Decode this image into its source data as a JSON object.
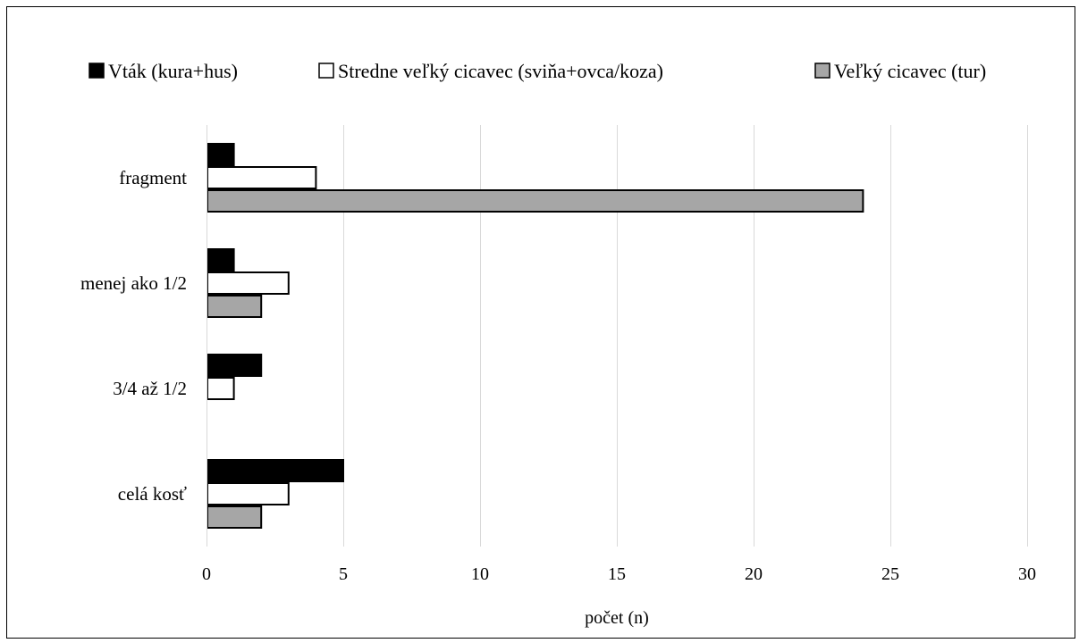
{
  "chart_data": {
    "type": "bar",
    "orientation": "horizontal",
    "categories": [
      "fragment",
      "menej ako 1/2",
      "3/4 až 1/2",
      "celá kosť"
    ],
    "series": [
      {
        "name": "Vták (kura+hus)",
        "values": [
          1,
          1,
          2,
          5
        ],
        "color": "#000000"
      },
      {
        "name": "Stredne veľký cicavec (sviňa+ovca/koza)",
        "values": [
          4,
          3,
          1,
          3
        ],
        "color": "#ffffff"
      },
      {
        "name": "Veľký cicavec (tur)",
        "values": [
          24,
          2,
          0,
          2
        ],
        "color": "#a6a6a6"
      }
    ],
    "xlabel": "počet (n)",
    "ylabel": "",
    "xlim": [
      0,
      30
    ],
    "xticks": [
      "0",
      "5",
      "10",
      "15",
      "20",
      "25",
      "30"
    ],
    "grid": "vertical",
    "legend": "top"
  }
}
